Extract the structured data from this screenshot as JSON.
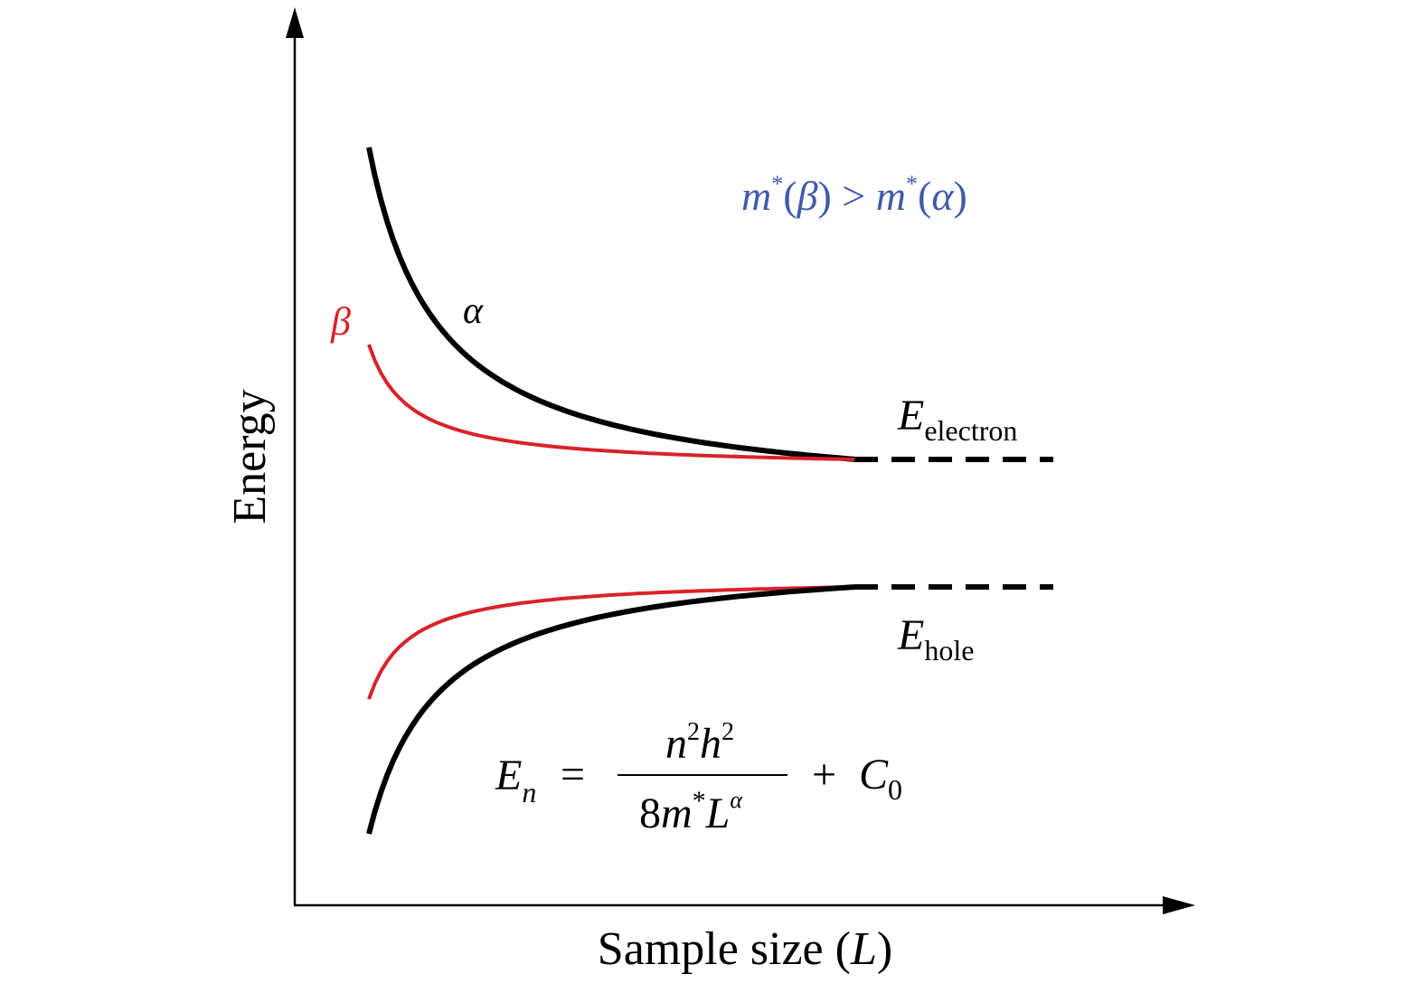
{
  "axes": {
    "ylabel": "Energy",
    "xlabel_main": "Sample size (",
    "xlabel_var": "L",
    "xlabel_close": ")"
  },
  "curves": {
    "alpha_label": "α",
    "beta_label": "β"
  },
  "annotation": {
    "m1": "m",
    "sup1": "*",
    "paren1": "(",
    "beta": "β",
    "mid": ") > ",
    "m2": "m",
    "sup2": "*",
    "paren2": "(",
    "alpha": "α",
    "close": ")",
    "color": "#3f5ba9"
  },
  "levels": {
    "electron_E": "E",
    "electron_sub": "electron",
    "hole_E": "E",
    "hole_sub": "hole"
  },
  "formula": {
    "lhs_E": "E",
    "lhs_sub": "n",
    "equals": "=",
    "num_n": "n",
    "num_n_exp": "2",
    "num_h": "h",
    "num_h_exp": "2",
    "den_8": "8",
    "den_m": "m",
    "den_star": "*",
    "den_L": "L",
    "den_exp": "α",
    "plus": "+",
    "C": "C",
    "C_sub": "0"
  },
  "colors": {
    "alpha_curve": "#000000",
    "beta_curve": "#d8232a",
    "axis": "#000000"
  }
}
